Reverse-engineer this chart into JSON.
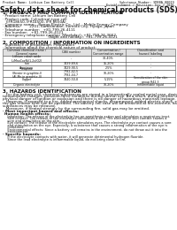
{
  "title": "Safety data sheet for chemical products (SDS)",
  "header_left": "Product Name: Lithium Ion Battery Cell",
  "header_right_line1": "Substance Number: SMSBA 00019",
  "header_right_line2": "Establishment / Revision: Dec 7 2016",
  "section1_title": "1. PRODUCT AND COMPANY IDENTIFICATION",
  "section1_lines": [
    "· Product name: Lithium Ion Battery Cell",
    "· Product code: Cylindrical-type cell",
    "   (IFR18650, IFR14500, IFR 8650A)",
    "· Company name:   Bengo Electric Co., Ltd.   Mobile Energy Company",
    "· Address:        2201, Kamikandan, Sumoto City, Hyogo, Japan",
    "· Telephone number:   +81-799-26-4111",
    "· Fax number:   +81-799-26-4121",
    "· Emergency telephone number (Weekday): +81-799-26-3662",
    "                                         (Night and holiday): +81-799-26-4121"
  ],
  "section2_title": "2. COMPOSITION / INFORMATION ON INGREDIENTS",
  "section2_sub": "· Substance or preparation: Preparation",
  "section2_sub2": "· Information about the chemical nature of product:",
  "table_headers": [
    "Common chemical name /\nGeneral name",
    "CAS number",
    "Concentration /\nConcentration range",
    "Classification and\nhazard labeling"
  ],
  "table_rows": [
    [
      "Lithium cobalt oxide\n(LiMnxCoxNi(1-2x)O2)",
      "-",
      "30-40%",
      "-"
    ],
    [
      "Iron",
      "7439-89-6",
      "15-20%",
      "-"
    ],
    [
      "Aluminum",
      "7429-90-5",
      "2-5%",
      "-"
    ],
    [
      "Graphite\n(Binder in graphite-I)\n(Al-Mn in graphite-II)",
      "7782-42-5\n7782-44-7",
      "10-20%",
      "-"
    ],
    [
      "Copper",
      "7440-50-8",
      "5-15%",
      "Sensitization of the skin\ngroup R42.3"
    ],
    [
      "Organic electrolyte",
      "-",
      "10-20%",
      "Inflammable liquid"
    ]
  ],
  "section3_title": "3. HAZARDS IDENTIFICATION",
  "section3_lines": [
    "   For the battery cell, chemical substances are stored in a hermetically sealed metal case, designed to withstand",
    "temperature changes, pressure-force variations during normal use. As a result, during normal use, there is no",
    "physical danger of ignition or explosion and there is no danger of hazardous materials leakage.",
    "   However, if exposed to a fire, added mechanical shocks, decomposed, added electric shock, etc may cause",
    "the gas release vent can be operated. The battery cell case will be breached at fire-extreme, hazardous",
    "substances may be released.",
    "   Moreover, if heated strongly by the surrounding fire, solid gas may be emitted."
  ],
  "section3_hazards_title": "· Most important hazard and effects:",
  "section3_hazards_sub": "Human health effects:",
  "section3_hazards_lines": [
    "   Inhalation: The release of the electrolyte has an anesthesia action and stimulates a respiratory tract.",
    "   Skin contact: The release of the electrolyte stimulates a skin. The electrolyte skin contact causes a",
    "   sore and stimulation on the skin.",
    "   Eye contact: The release of the electrolyte stimulates eyes. The electrolyte eye contact causes a sore",
    "   and stimulation on the eye. Especially, a substance that causes a strong inflammation of the eye is",
    "   contained.",
    "   Environmental effects: Since a battery cell remains in the environment, do not throw out it into the",
    "   environment."
  ],
  "section3_specific": "· Specific hazards:",
  "section3_specific_lines": [
    "   If the electrolyte contacts with water, it will generate detrimental hydrogen fluoride.",
    "   Since the lead electrolyte is inflammable liquid, do not bring close to fire."
  ],
  "bg_color": "#ffffff",
  "text_color": "#111111",
  "title_fontsize": 5.5,
  "section_fontsize": 4.0,
  "body_fontsize": 3.0,
  "small_fontsize": 2.6
}
